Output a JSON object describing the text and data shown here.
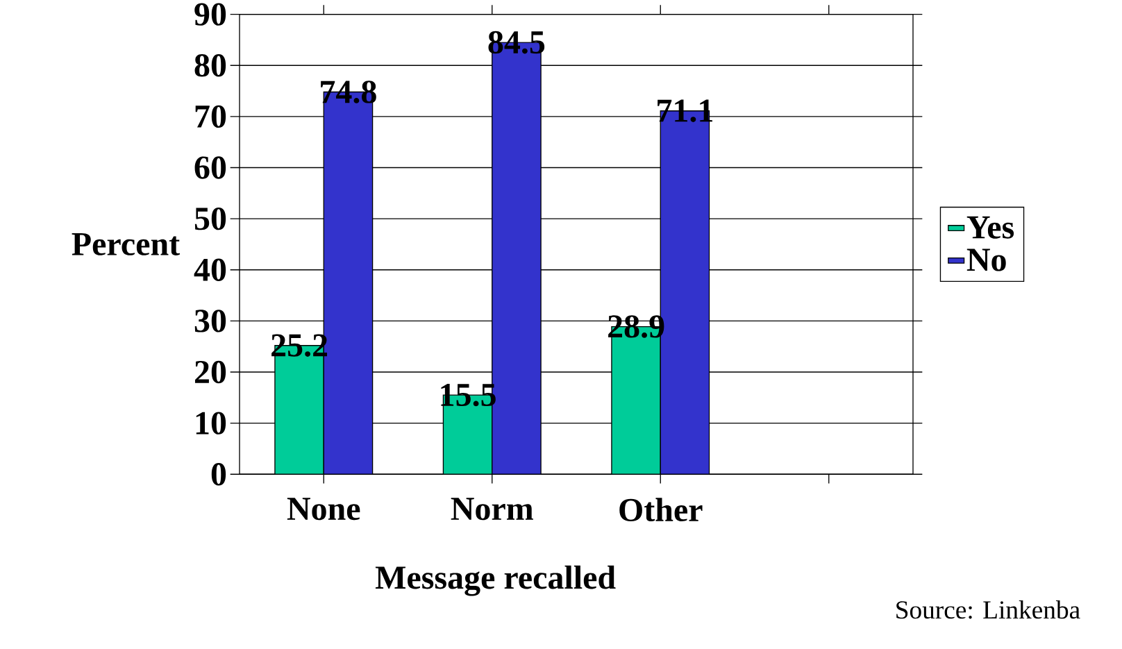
{
  "chart_data": {
    "type": "bar",
    "categories": [
      "None",
      "Norm",
      "Other",
      null
    ],
    "series": [
      {
        "name": "Yes",
        "color": "#00cc99",
        "values": [
          25.2,
          15.5,
          28.9,
          null
        ]
      },
      {
        "name": "No",
        "color": "#3333cc",
        "values": [
          74.8,
          84.5,
          71.1,
          null
        ]
      }
    ],
    "xlabel": "Message recalled",
    "ylabel": "Percent",
    "ylim": [
      0,
      90
    ],
    "yticks": [
      0,
      10,
      20,
      30,
      40,
      50,
      60,
      70,
      80,
      90
    ],
    "grid": "y",
    "legend": "right",
    "data_labels": true,
    "annotations": [
      "Source: Linkenba"
    ]
  }
}
